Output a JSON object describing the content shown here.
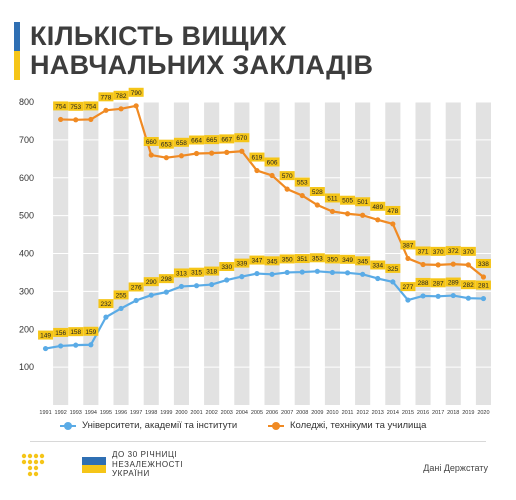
{
  "header": {
    "title_line1": "КІЛЬКІСТЬ ВИЩИХ",
    "title_line2": "НАВЧАЛЬНИХ ЗАКЛАДІВ"
  },
  "colors": {
    "blue": "#5aabe6",
    "orange": "#f08a23",
    "label_bg": "#f5c518",
    "title_blue": "#2f6fb3",
    "title_yellow": "#f5c518",
    "stripe": "#e2e2e2"
  },
  "chart_data": {
    "type": "line",
    "title": "КІЛЬКІСТЬ ВИЩИХ НАВЧАЛЬНИХ ЗАКЛАДІВ",
    "x": [
      "1991",
      "1992",
      "1993",
      "1994",
      "1995",
      "1996",
      "1997",
      "1998",
      "1999",
      "2000",
      "2001",
      "2002",
      "2003",
      "2004",
      "2005",
      "2006",
      "2007",
      "2008",
      "2009",
      "2010",
      "2011",
      "2012",
      "2013",
      "2014",
      "2015",
      "2016",
      "2017",
      "2018",
      "2019",
      "2020"
    ],
    "ylim": [
      0,
      800
    ],
    "yticks": [
      100,
      200,
      300,
      400,
      500,
      600,
      700,
      800
    ],
    "grid": true,
    "series": [
      {
        "name": "Університети, академії та інститути",
        "color": "#5aabe6",
        "values": [
          149,
          156,
          158,
          159,
          232,
          255,
          276,
          290,
          298,
          313,
          315,
          318,
          330,
          339,
          347,
          345,
          350,
          351,
          353,
          350,
          349,
          345,
          334,
          325,
          277,
          288,
          287,
          289,
          282,
          281
        ]
      },
      {
        "name": "Коледжі, технікуми та училища",
        "color": "#f08a23",
        "values": [
          null,
          754,
          753,
          754,
          778,
          782,
          790,
          660,
          653,
          658,
          664,
          665,
          667,
          670,
          619,
          606,
          570,
          553,
          528,
          511,
          505,
          501,
          489,
          478,
          387,
          371,
          370,
          372,
          370,
          338
        ]
      }
    ]
  },
  "legend": {
    "item1": "Університети, академії та інститути",
    "item2": "Коледжі, технікуми та училища"
  },
  "footer": {
    "anniv_line1": "ДО 30 РІЧНИЦІ",
    "anniv_line2": "НЕЗАЛЕЖНОСТІ",
    "anniv_line3": "УКРАЇНИ",
    "source": "Дані Держстату"
  }
}
